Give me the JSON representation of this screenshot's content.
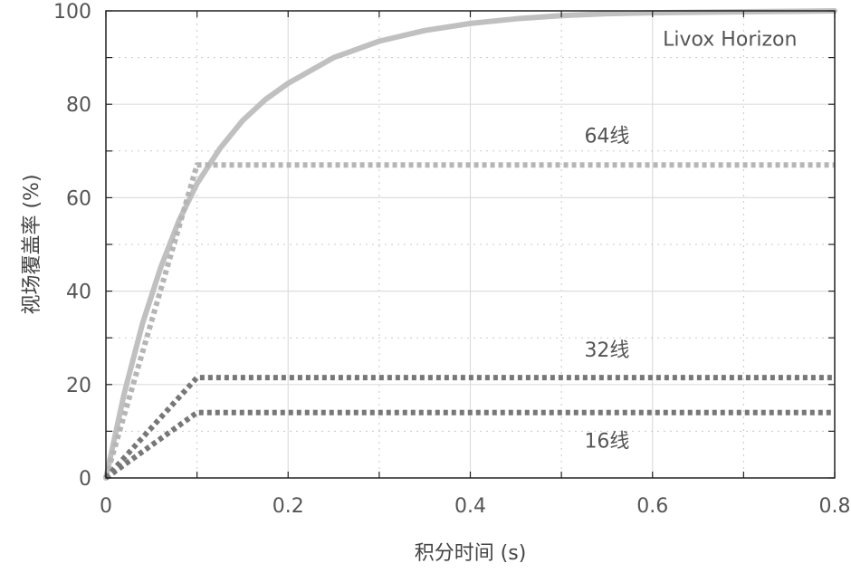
{
  "chart_data": {
    "type": "line",
    "xlabel": "积分时间 (s)",
    "ylabel": "视场覆盖率 (%)",
    "xlim": [
      0,
      0.8
    ],
    "ylim": [
      0,
      100
    ],
    "xticks": [
      0,
      0.2,
      0.4,
      0.6,
      0.8
    ],
    "xtick_labels": [
      "0",
      "0.2",
      "0.4",
      "0.6",
      "0.8"
    ],
    "yticks": [
      0,
      20,
      40,
      60,
      80,
      100
    ],
    "ytick_labels": [
      "0",
      "20",
      "40",
      "60",
      "80",
      "100"
    ],
    "grid": true,
    "series": [
      {
        "name": "Livox Horizon",
        "style": "solid",
        "color": "#c0c0c0",
        "x": [
          0,
          0.02,
          0.04,
          0.06,
          0.08,
          0.1,
          0.125,
          0.15,
          0.175,
          0.2,
          0.25,
          0.3,
          0.35,
          0.4,
          0.45,
          0.5,
          0.55,
          0.6,
          0.7,
          0.8
        ],
        "y": [
          0,
          18,
          33,
          45,
          55,
          63,
          70.5,
          76.5,
          81,
          84.5,
          90,
          93.5,
          95.8,
          97.3,
          98.3,
          99,
          99.4,
          99.6,
          99.8,
          100
        ]
      },
      {
        "name": "64线",
        "style": "dotted",
        "color": "#b5b5b5",
        "x": [
          0,
          0.1,
          0.8
        ],
        "y": [
          0,
          67,
          67
        ]
      },
      {
        "name": "32线",
        "style": "dotted",
        "color": "#777777",
        "x": [
          0,
          0.1,
          0.8
        ],
        "y": [
          0,
          21.5,
          21.5
        ]
      },
      {
        "name": "16线",
        "style": "dotted",
        "color": "#777777",
        "x": [
          0,
          0.1,
          0.8
        ],
        "y": [
          0,
          14,
          14
        ]
      }
    ]
  }
}
